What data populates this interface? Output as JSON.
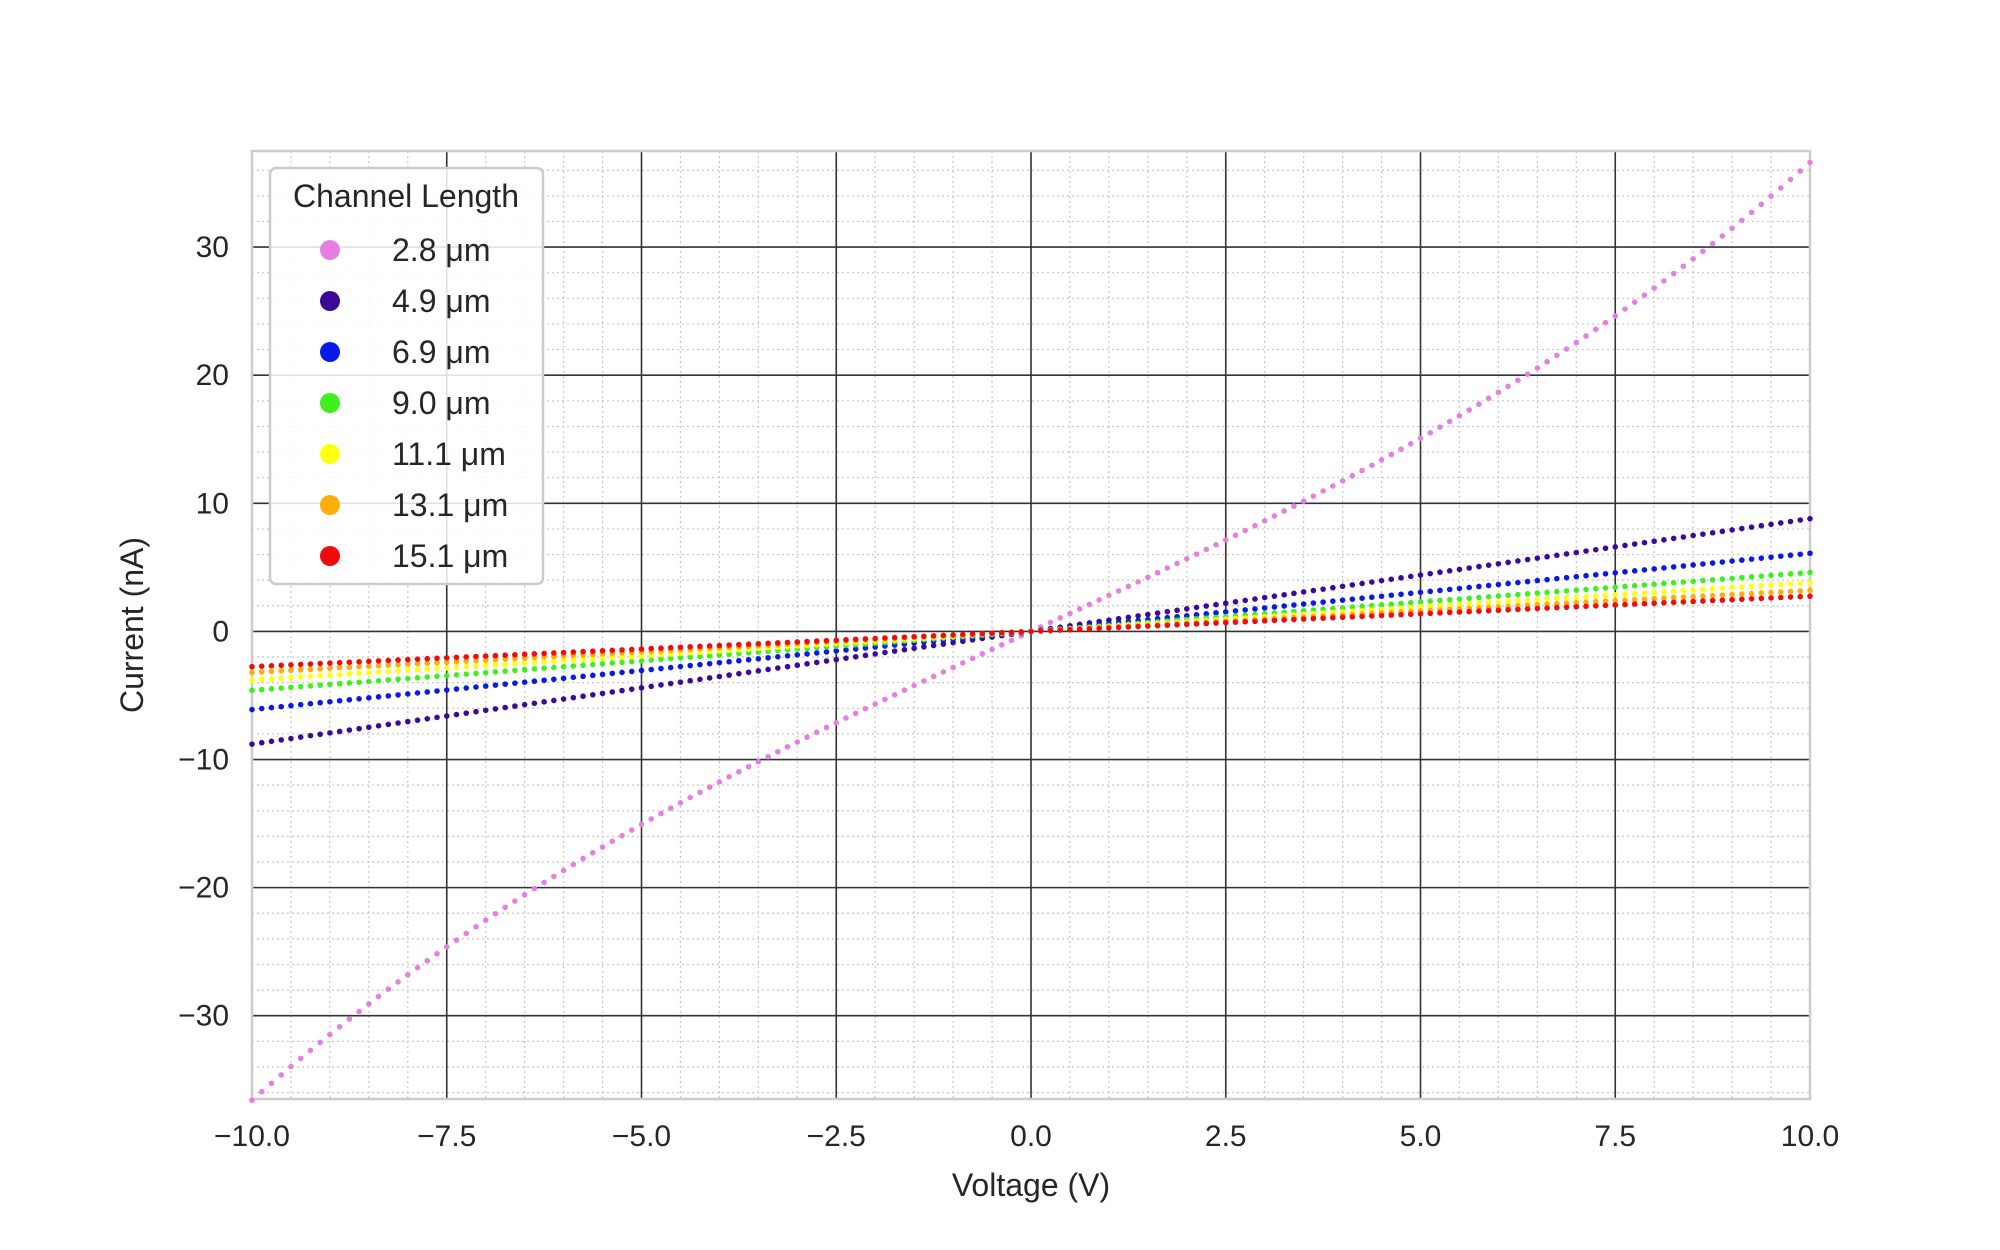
{
  "chart_data": {
    "type": "scatter",
    "title": "",
    "xlabel": "Voltage (V)",
    "ylabel": "Current (nA)",
    "xlim": [
      -10.0,
      10.0
    ],
    "ylim": [
      -36.5,
      37.5
    ],
    "x_ticks": [
      -10.0,
      -7.5,
      -5.0,
      -2.5,
      0.0,
      2.5,
      5.0,
      7.5,
      10.0
    ],
    "x_tick_labels": [
      "−10.0",
      "−7.5",
      "−5.0",
      "−2.5",
      "0.0",
      "2.5",
      "5.0",
      "7.5",
      "10.0"
    ],
    "y_ticks": [
      -30,
      -20,
      -10,
      0,
      10,
      20,
      30
    ],
    "y_tick_labels": [
      "−30",
      "−20",
      "−10",
      "0",
      "10",
      "20",
      "30"
    ],
    "grid": "major solid, minor dotted",
    "legend_title": "Channel Length",
    "legend_position": "top-left",
    "x": {
      "start": -10.0,
      "stop": 10.0,
      "num_points": 161
    },
    "series": [
      {
        "name": "2.8 μm",
        "color": "#e580e2",
        "slope_nA_per_V": 2.8,
        "cubic_nA_per_V3": 0.0086
      },
      {
        "name": "4.9 μm",
        "color": "#3b0a99",
        "slope_nA_per_V": 0.88,
        "cubic_nA_per_V3": 0.0
      },
      {
        "name": "6.9 μm",
        "color": "#0a1ae6",
        "slope_nA_per_V": 0.61,
        "cubic_nA_per_V3": 0.0
      },
      {
        "name": "9.0 μm",
        "color": "#3ef01e",
        "slope_nA_per_V": 0.46,
        "cubic_nA_per_V3": 0.0
      },
      {
        "name": "11.1 μm",
        "color": "#ffff12",
        "slope_nA_per_V": 0.38,
        "cubic_nA_per_V3": 0.0
      },
      {
        "name": "13.1 μm",
        "color": "#ffad0a",
        "slope_nA_per_V": 0.32,
        "cubic_nA_per_V3": 0.0
      },
      {
        "name": "15.1 μm",
        "color": "#f00c0c",
        "slope_nA_per_V": 0.275,
        "cubic_nA_per_V3": 0.0
      }
    ]
  }
}
